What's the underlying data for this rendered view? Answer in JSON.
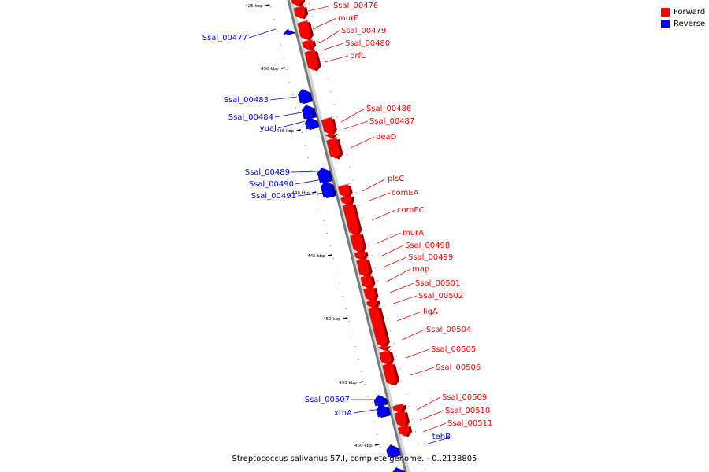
{
  "legend": {
    "forward": {
      "label": "Forward",
      "color": "#ff0000"
    },
    "reverse": {
      "label": "Reverse",
      "color": "#0000ff"
    }
  },
  "caption": "Streptococcus salivarius 57.I, complete genome. - 0..2138805",
  "ticks": [
    {
      "kbp": 425,
      "label": "425 kbp"
    },
    {
      "kbp": 430,
      "label": "430 kbp"
    },
    {
      "kbp": 435,
      "label": "435 kbp"
    },
    {
      "kbp": 440,
      "label": "440 kbp"
    },
    {
      "kbp": 445,
      "label": "445 kbp"
    },
    {
      "kbp": 450,
      "label": "450 kbp"
    },
    {
      "kbp": 455,
      "label": "455 kbp"
    },
    {
      "kbp": 460,
      "label": "460 kbp"
    }
  ],
  "features": [
    {
      "name": "Ssal_00476",
      "strand": "forward"
    },
    {
      "name": "murF",
      "strand": "forward"
    },
    {
      "name": "Ssal_00477",
      "strand": "reverse"
    },
    {
      "name": "Ssal_00479",
      "strand": "forward"
    },
    {
      "name": "Ssal_00480",
      "strand": "forward"
    },
    {
      "name": "prfC",
      "strand": "forward"
    },
    {
      "name": "Ssal_00483",
      "strand": "reverse"
    },
    {
      "name": "Ssal_00484",
      "strand": "reverse"
    },
    {
      "name": "yuaJ",
      "strand": "reverse"
    },
    {
      "name": "Ssal_00486",
      "strand": "forward"
    },
    {
      "name": "Ssal_00487",
      "strand": "forward"
    },
    {
      "name": "deaD",
      "strand": "forward"
    },
    {
      "name": "Ssal_00489",
      "strand": "reverse"
    },
    {
      "name": "Ssal_00490",
      "strand": "reverse"
    },
    {
      "name": "Ssal_00491",
      "strand": "reverse"
    },
    {
      "name": "plsC",
      "strand": "forward"
    },
    {
      "name": "comEA",
      "strand": "forward"
    },
    {
      "name": "comEC",
      "strand": "forward"
    },
    {
      "name": "murA",
      "strand": "forward"
    },
    {
      "name": "Ssal_00498",
      "strand": "forward"
    },
    {
      "name": "Ssal_00499",
      "strand": "forward"
    },
    {
      "name": "map",
      "strand": "forward"
    },
    {
      "name": "Ssal_00501",
      "strand": "forward"
    },
    {
      "name": "Ssal_00502",
      "strand": "forward"
    },
    {
      "name": "ligA",
      "strand": "forward"
    },
    {
      "name": "Ssal_00504",
      "strand": "forward"
    },
    {
      "name": "Ssal_00505",
      "strand": "forward"
    },
    {
      "name": "Ssal_00506",
      "strand": "forward"
    },
    {
      "name": "Ssal_00507",
      "strand": "reverse"
    },
    {
      "name": "xthA",
      "strand": "reverse"
    },
    {
      "name": "Ssal_00509",
      "strand": "forward"
    },
    {
      "name": "Ssal_00510",
      "strand": "forward"
    },
    {
      "name": "Ssal_00511",
      "strand": "forward"
    },
    {
      "name": "tehB",
      "strand": "reverse"
    }
  ]
}
